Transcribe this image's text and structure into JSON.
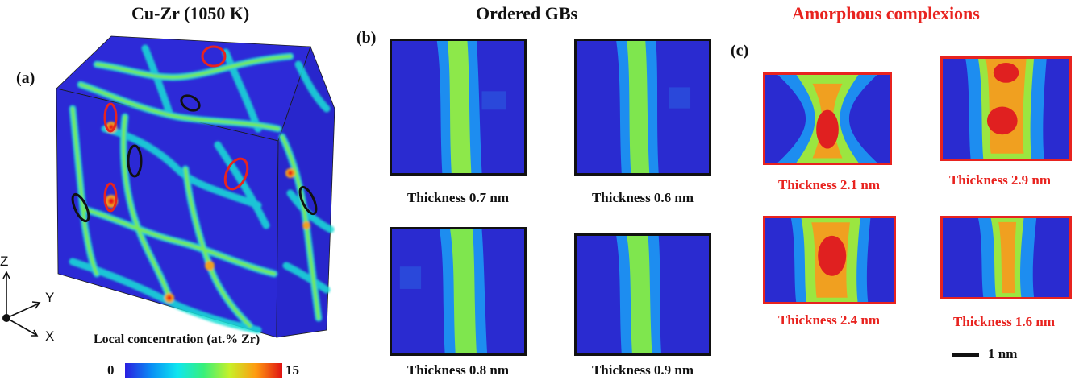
{
  "figure": {
    "panel_a": {
      "title": "Cu-Zr (1050 K)",
      "label": "(a)",
      "axes": {
        "z": "Z",
        "y": "Y",
        "x": "X"
      },
      "colorbar": {
        "title": "Local concentration (at.% Zr)",
        "min": "0",
        "max": "15",
        "colors": [
          "#2a1ee0",
          "#0a8ef5",
          "#0ee6f0",
          "#37f07a",
          "#c8f028",
          "#ff9a10",
          "#e01212"
        ]
      }
    },
    "panel_b": {
      "title": "Ordered GBs",
      "label": "(b)",
      "items": [
        {
          "thickness": "Thickness 0.7 nm"
        },
        {
          "thickness": "Thickness 0.6 nm"
        },
        {
          "thickness": "Thickness 0.8 nm"
        },
        {
          "thickness": "Thickness 0.9 nm"
        }
      ],
      "frame_color": "#111111"
    },
    "panel_c": {
      "title": "Amorphous complexions",
      "label": "(c)",
      "items": [
        {
          "thickness": "Thickness 2.1 nm"
        },
        {
          "thickness": "Thickness 2.9 nm"
        },
        {
          "thickness": "Thickness 2.4 nm"
        },
        {
          "thickness": "Thickness 1.6 nm"
        }
      ],
      "frame_color": "#e8231f",
      "scale_bar": "1 nm"
    }
  }
}
